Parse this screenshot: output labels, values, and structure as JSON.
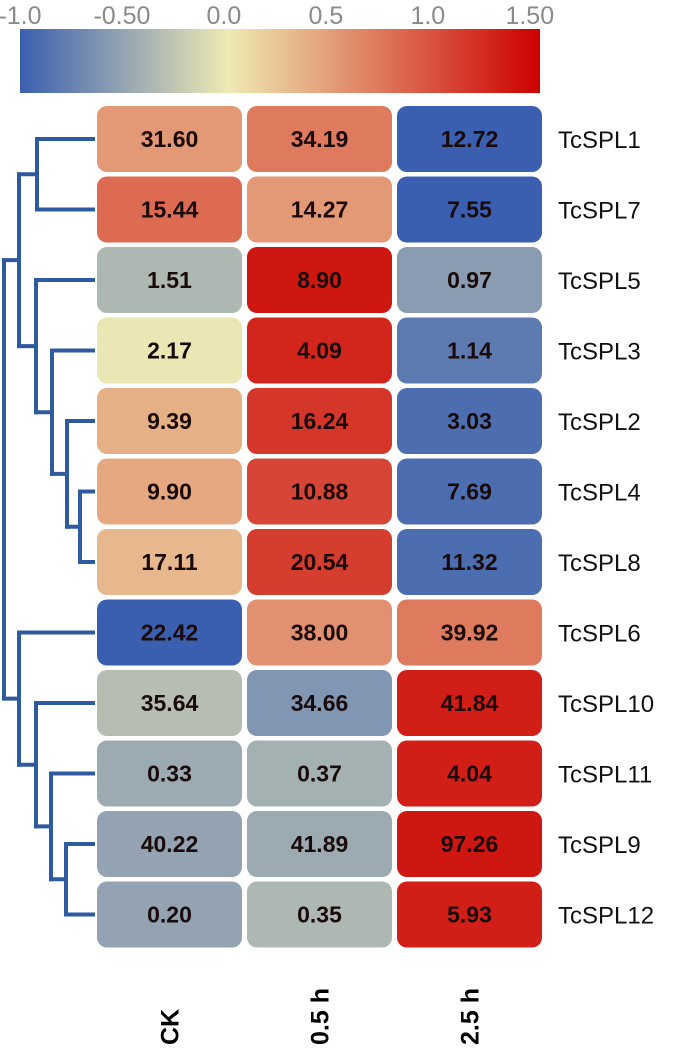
{
  "chart_data": {
    "type": "heatmap",
    "colorbar": {
      "ticks": [
        "-1.0",
        "-0.50",
        "0.0",
        "0.5",
        "1.0",
        "1.50"
      ],
      "tick_values": [
        -1.0,
        -0.5,
        0.0,
        0.5,
        1.0,
        1.5
      ],
      "range": [
        -1.0,
        1.55
      ],
      "colors": {
        "low": "#3a5fb0",
        "mid": "#efeab4",
        "high": "#cc0000"
      }
    },
    "columns": [
      "CK",
      "0.5 h",
      "2.5 h"
    ],
    "rows": [
      {
        "label": "TcSPL1",
        "values": [
          "31.60",
          "34.19",
          "12.72"
        ],
        "scale": [
          0.55,
          0.75,
          -1.0
        ]
      },
      {
        "label": "TcSPL7",
        "values": [
          "15.44",
          "14.27",
          "7.55"
        ],
        "scale": [
          0.85,
          0.55,
          -1.0
        ]
      },
      {
        "label": "TcSPL5",
        "values": [
          "1.51",
          "8.90",
          "0.97"
        ],
        "scale": [
          -0.35,
          1.4,
          -0.55
        ]
      },
      {
        "label": "TcSPL3",
        "values": [
          "2.17",
          "4.09",
          "1.14"
        ],
        "scale": [
          0.0,
          1.3,
          -0.8
        ]
      },
      {
        "label": "TcSPL2",
        "values": [
          "9.39",
          "16.24",
          "3.03"
        ],
        "scale": [
          0.4,
          1.2,
          -0.9
        ]
      },
      {
        "label": "TcSPL4",
        "values": [
          "9.90",
          "10.88",
          "7.69"
        ],
        "scale": [
          0.45,
          1.1,
          -0.9
        ]
      },
      {
        "label": "TcSPL8",
        "values": [
          "17.11",
          "20.54",
          "11.32"
        ],
        "scale": [
          0.35,
          1.15,
          -0.9
        ]
      },
      {
        "label": "TcSPL6",
        "values": [
          "22.42",
          "38.00",
          "39.92"
        ],
        "scale": [
          -1.0,
          0.6,
          0.75
        ]
      },
      {
        "label": "TcSPL10",
        "values": [
          "35.64",
          "34.66",
          "41.84"
        ],
        "scale": [
          -0.3,
          -0.6,
          1.35
        ]
      },
      {
        "label": "TcSPL11",
        "values": [
          "0.33",
          "0.37",
          "4.04"
        ],
        "scale": [
          -0.45,
          -0.4,
          1.35
        ]
      },
      {
        "label": "TcSPL9",
        "values": [
          "40.22",
          "41.89",
          "97.26"
        ],
        "scale": [
          -0.5,
          -0.45,
          1.4
        ]
      },
      {
        "label": "TcSPL12",
        "values": [
          "0.20",
          "0.35",
          "5.93"
        ],
        "scale": [
          -0.5,
          -0.35,
          1.35
        ]
      }
    ],
    "dendrogram_color": "#2e5aa0"
  }
}
